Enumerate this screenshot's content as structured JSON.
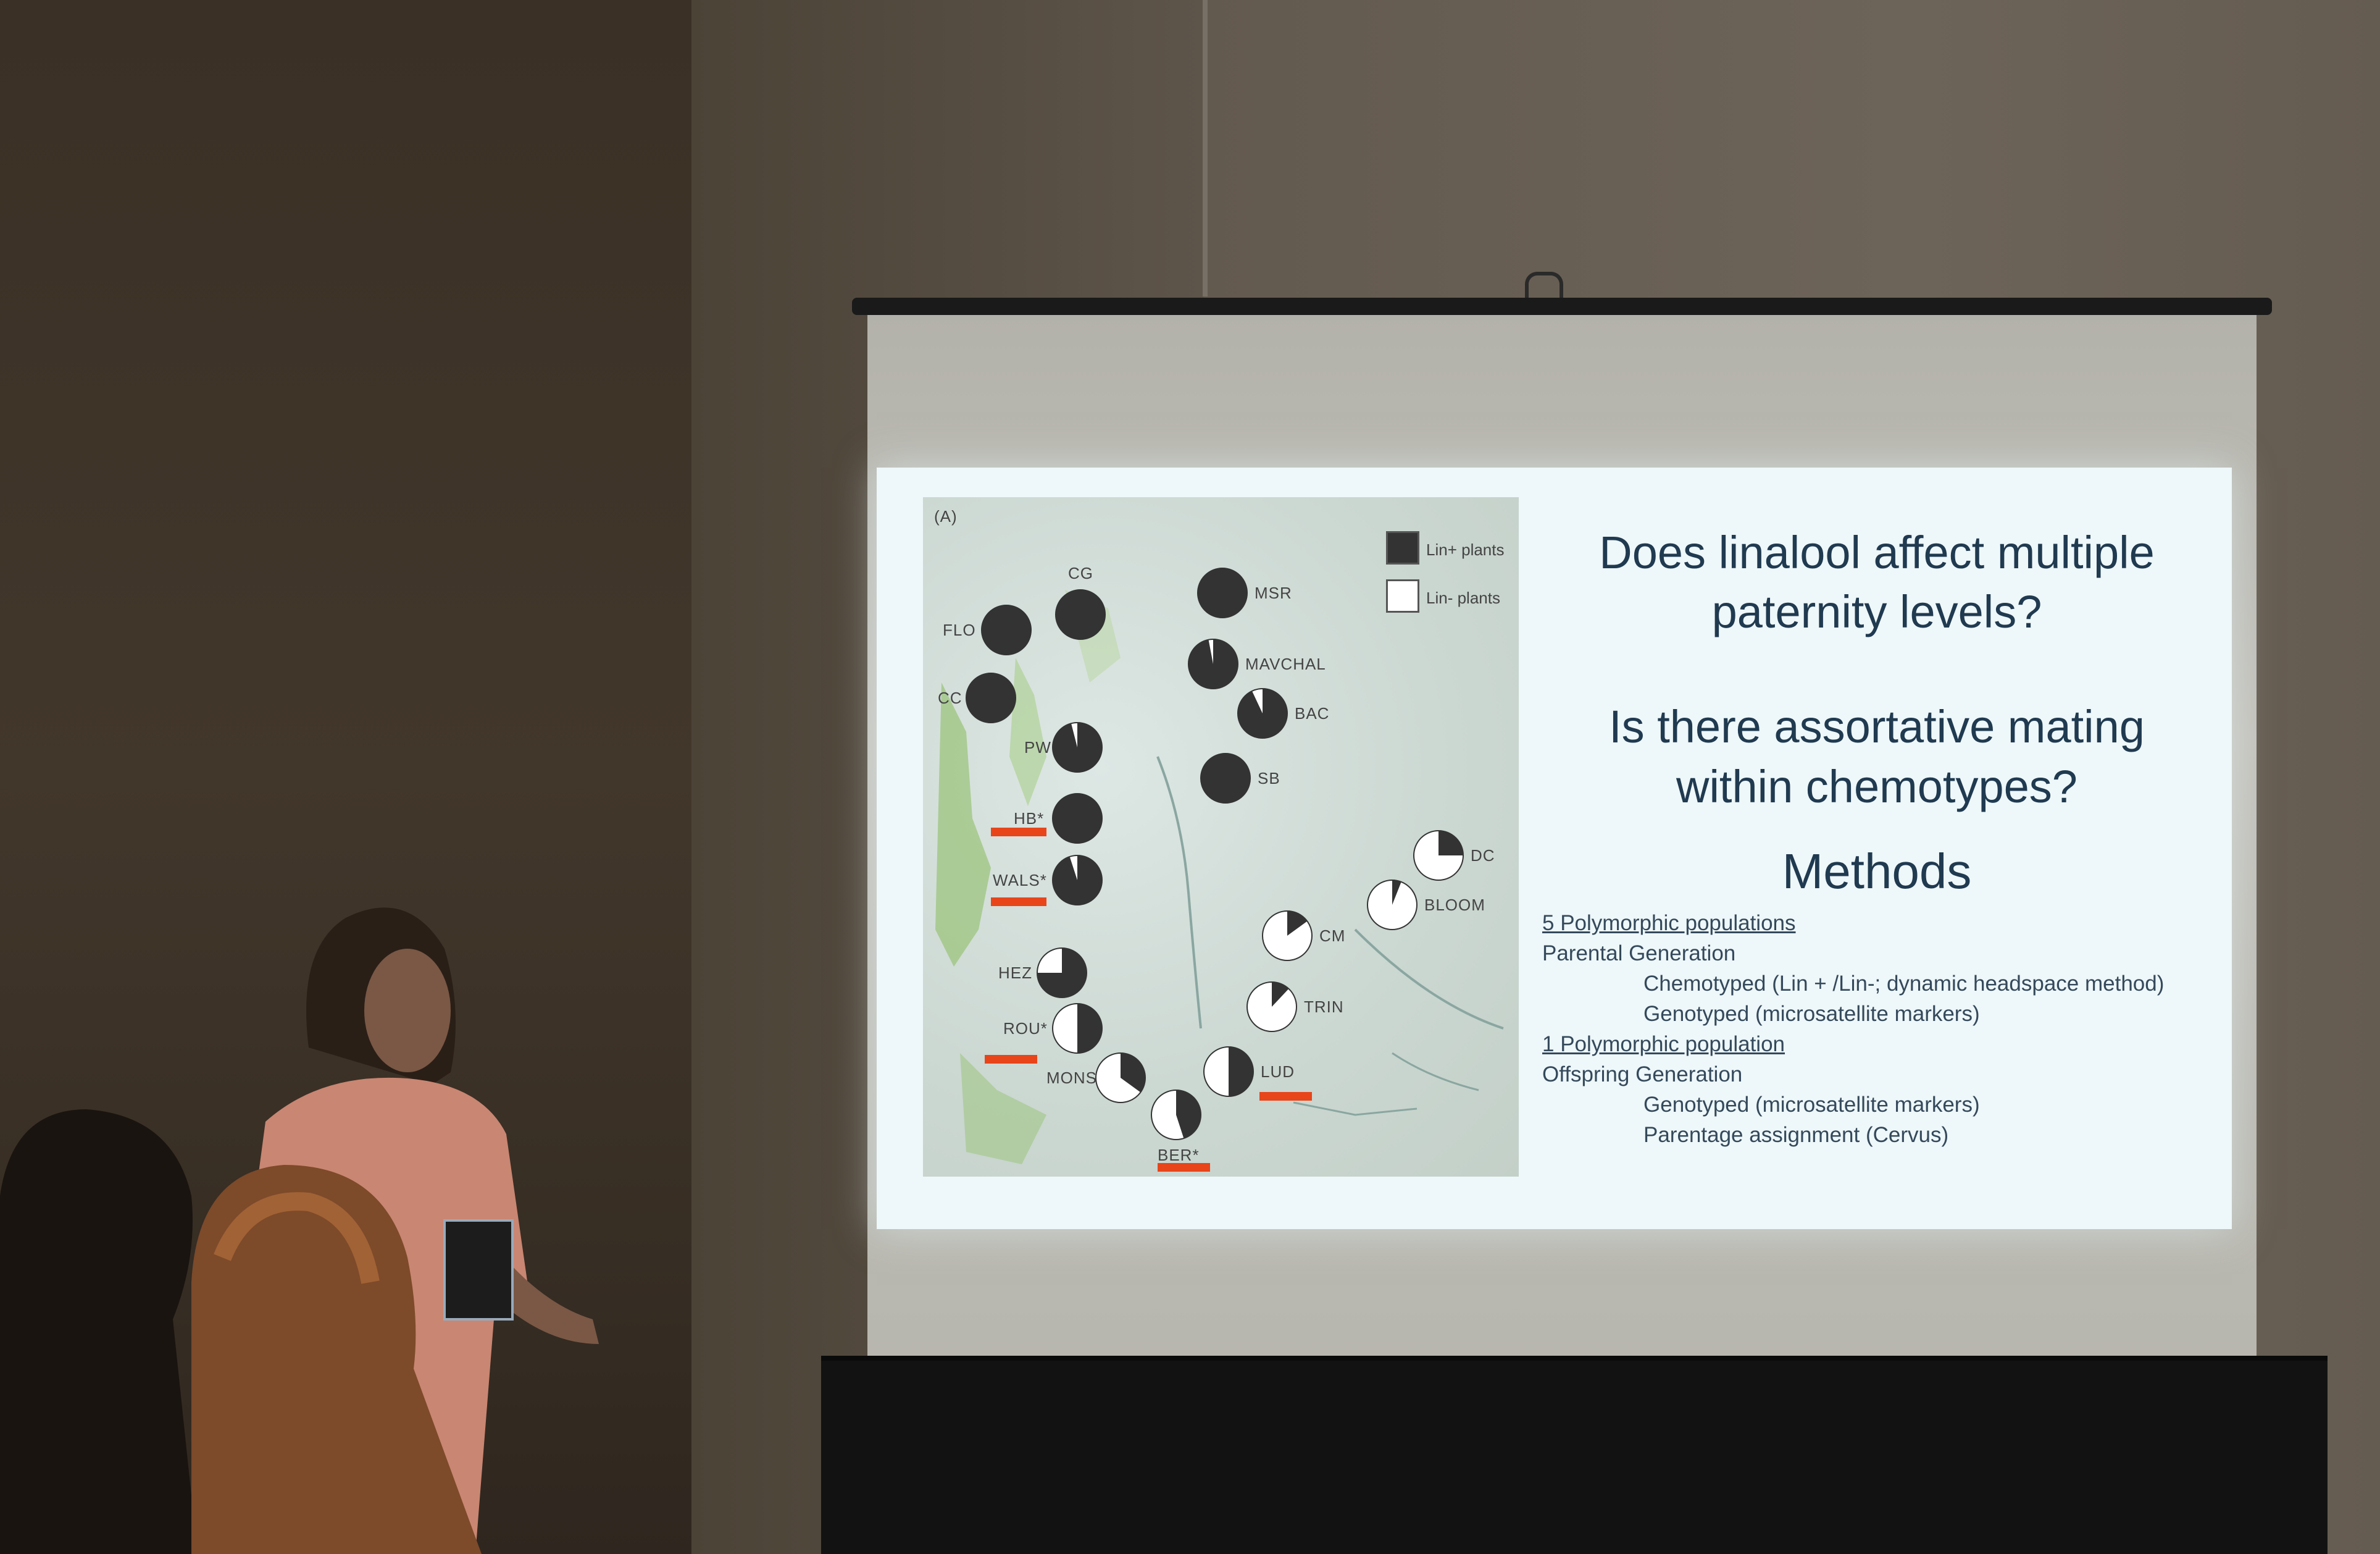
{
  "slide": {
    "map_panel_label": "(A)",
    "legend": [
      {
        "label": "Lin+ plants",
        "color": "#333333"
      },
      {
        "label": "Lin- plants",
        "color": "#ffffff"
      }
    ],
    "populations": [
      {
        "name": "FLO",
        "lin_plus": 1.0
      },
      {
        "name": "CG",
        "lin_plus": 1.0
      },
      {
        "name": "MSR",
        "lin_plus": 1.0
      },
      {
        "name": "MAVCHAL",
        "lin_plus": 0.97
      },
      {
        "name": "CC",
        "lin_plus": 1.0
      },
      {
        "name": "BAC",
        "lin_plus": 0.93
      },
      {
        "name": "PW",
        "lin_plus": 0.96
      },
      {
        "name": "SB",
        "lin_plus": 1.0
      },
      {
        "name": "HB*",
        "lin_plus": 1.0
      },
      {
        "name": "WALS*",
        "lin_plus": 0.95
      },
      {
        "name": "DC",
        "lin_plus": 0.25
      },
      {
        "name": "BLOOM",
        "lin_plus": 0.06
      },
      {
        "name": "CM",
        "lin_plus": 0.15
      },
      {
        "name": "HEZ",
        "lin_plus": 0.75
      },
      {
        "name": "TRIN",
        "lin_plus": 0.12
      },
      {
        "name": "ROU*",
        "lin_plus": 0.5
      },
      {
        "name": "LUD",
        "lin_plus": 0.5
      },
      {
        "name": "MONS",
        "lin_plus": 0.35
      },
      {
        "name": "BER*",
        "lin_plus": 0.45
      }
    ],
    "question_1": [
      "Does linalool affect multiple",
      "paternity levels?"
    ],
    "question_2": [
      "Is there assortative mating",
      "within chemotypes?"
    ],
    "methods_title": "Methods",
    "methods": [
      {
        "text": "5 Polymorphic populations",
        "level": 0,
        "underline": true
      },
      {
        "text": "Parental Generation",
        "level": 0,
        "underline": false
      },
      {
        "text": "Chemotyped (Lin + /Lin-; dynamic headspace method)",
        "level": 1,
        "underline": false
      },
      {
        "text": "Genotyped (microsatellite markers)",
        "level": 1,
        "underline": false
      },
      {
        "text": "1 Polymorphic population",
        "level": 0,
        "underline": true
      },
      {
        "text": "Offspring Generation",
        "level": 0,
        "underline": false
      },
      {
        "text": "Genotyped (microsatellite markers)",
        "level": 1,
        "underline": false
      },
      {
        "text": "Parentage assignment (Cervus)",
        "level": 1,
        "underline": false
      }
    ]
  }
}
